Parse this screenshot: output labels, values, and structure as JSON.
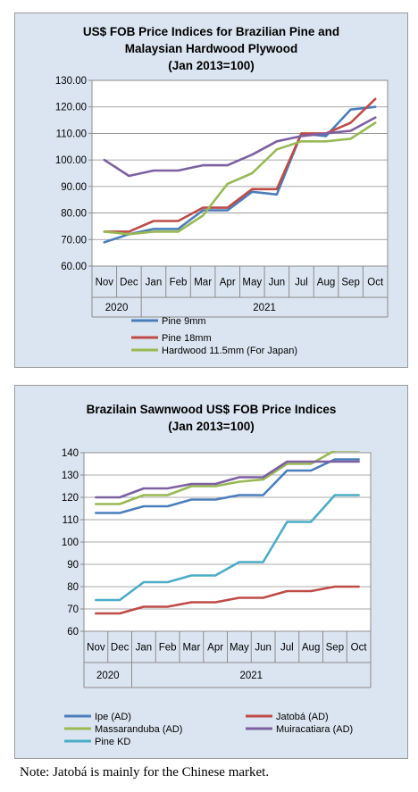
{
  "chart_data": [
    {
      "type": "line",
      "title_lines": [
        "US$ FOB Price Indices for Brazilian  Pine and",
        "Malaysian Hardwood Plywood",
        "(Jan 2013=100)"
      ],
      "categories": [
        "Nov",
        "Dec",
        "Jan",
        "Feb",
        "Mar",
        "Apr",
        "May",
        "Jun",
        "Jul",
        "Aug",
        "Sep",
        "Oct"
      ],
      "year_groups": [
        {
          "label": "2020",
          "span": 2
        },
        {
          "label": "2021",
          "span": 10
        }
      ],
      "ylim": [
        60,
        130
      ],
      "yticks": [
        "60.00",
        "70.00",
        "80.00",
        "90.00",
        "100.00",
        "110.00",
        "120.00",
        "130.00"
      ],
      "grid": true,
      "legend": "below",
      "series": [
        {
          "name": "Pine 9mm",
          "color": "#4a7ebb",
          "values": [
            69,
            72,
            74,
            74,
            81,
            81,
            88,
            87,
            110,
            109,
            119,
            120
          ]
        },
        {
          "name": "Pine 18mm",
          "color": "#be4b48",
          "values": [
            73,
            73,
            77,
            77,
            82,
            82,
            89,
            89,
            110,
            110,
            114,
            123
          ]
        },
        {
          "name": "Hardwood 11.5mm (For Japan)",
          "color": "#98b954",
          "values": [
            73,
            72,
            73,
            73,
            79,
            91,
            95,
            104,
            107,
            107,
            108,
            114
          ]
        },
        {
          "name": "",
          "color": "#7d60a0",
          "values": [
            100,
            94,
            96,
            96,
            98,
            98,
            102,
            107,
            109,
            110,
            111,
            116
          ]
        }
      ]
    },
    {
      "type": "line",
      "title_lines": [
        "Brazilain Sawnwood US$ FOB Price Indices",
        "(Jan 2013=100)"
      ],
      "categories": [
        "Nov",
        "Dec",
        "Jan",
        "Feb",
        "Mar",
        "Apr",
        "May",
        "Jun",
        "Jul",
        "Aug",
        "Sep",
        "Oct"
      ],
      "year_groups": [
        {
          "label": "2020",
          "span": 2
        },
        {
          "label": "2021",
          "span": 10
        }
      ],
      "ylim": [
        60,
        140
      ],
      "yticks": [
        "60",
        "70",
        "80",
        "90",
        "100",
        "110",
        "120",
        "130",
        "140"
      ],
      "grid": true,
      "legend": "below",
      "series": [
        {
          "name": "Ipe (AD)",
          "color": "#4a7ebb",
          "values": [
            113,
            113,
            116,
            116,
            119,
            119,
            121,
            121,
            132,
            132,
            137,
            137
          ]
        },
        {
          "name": "Jatobá (AD)",
          "color": "#be4b48",
          "values": [
            68,
            68,
            71,
            71,
            73,
            73,
            75,
            75,
            78,
            78,
            80,
            80
          ]
        },
        {
          "name": "Massaranduba (AD)",
          "color": "#98b954",
          "values": [
            117,
            117,
            121,
            121,
            125,
            125,
            127,
            128,
            135,
            135,
            141,
            141
          ]
        },
        {
          "name": "Muiracatiara (AD)",
          "color": "#7d60a0",
          "values": [
            120,
            120,
            124,
            124,
            126,
            126,
            129,
            129,
            136,
            136,
            136,
            136
          ]
        },
        {
          "name": "Pine KD",
          "color": "#4bacc6",
          "values": [
            74,
            74,
            82,
            82,
            85,
            85,
            91,
            91,
            109,
            109,
            121,
            121
          ]
        }
      ]
    }
  ],
  "note": "Note: Jatobá is mainly for the Chinese market."
}
